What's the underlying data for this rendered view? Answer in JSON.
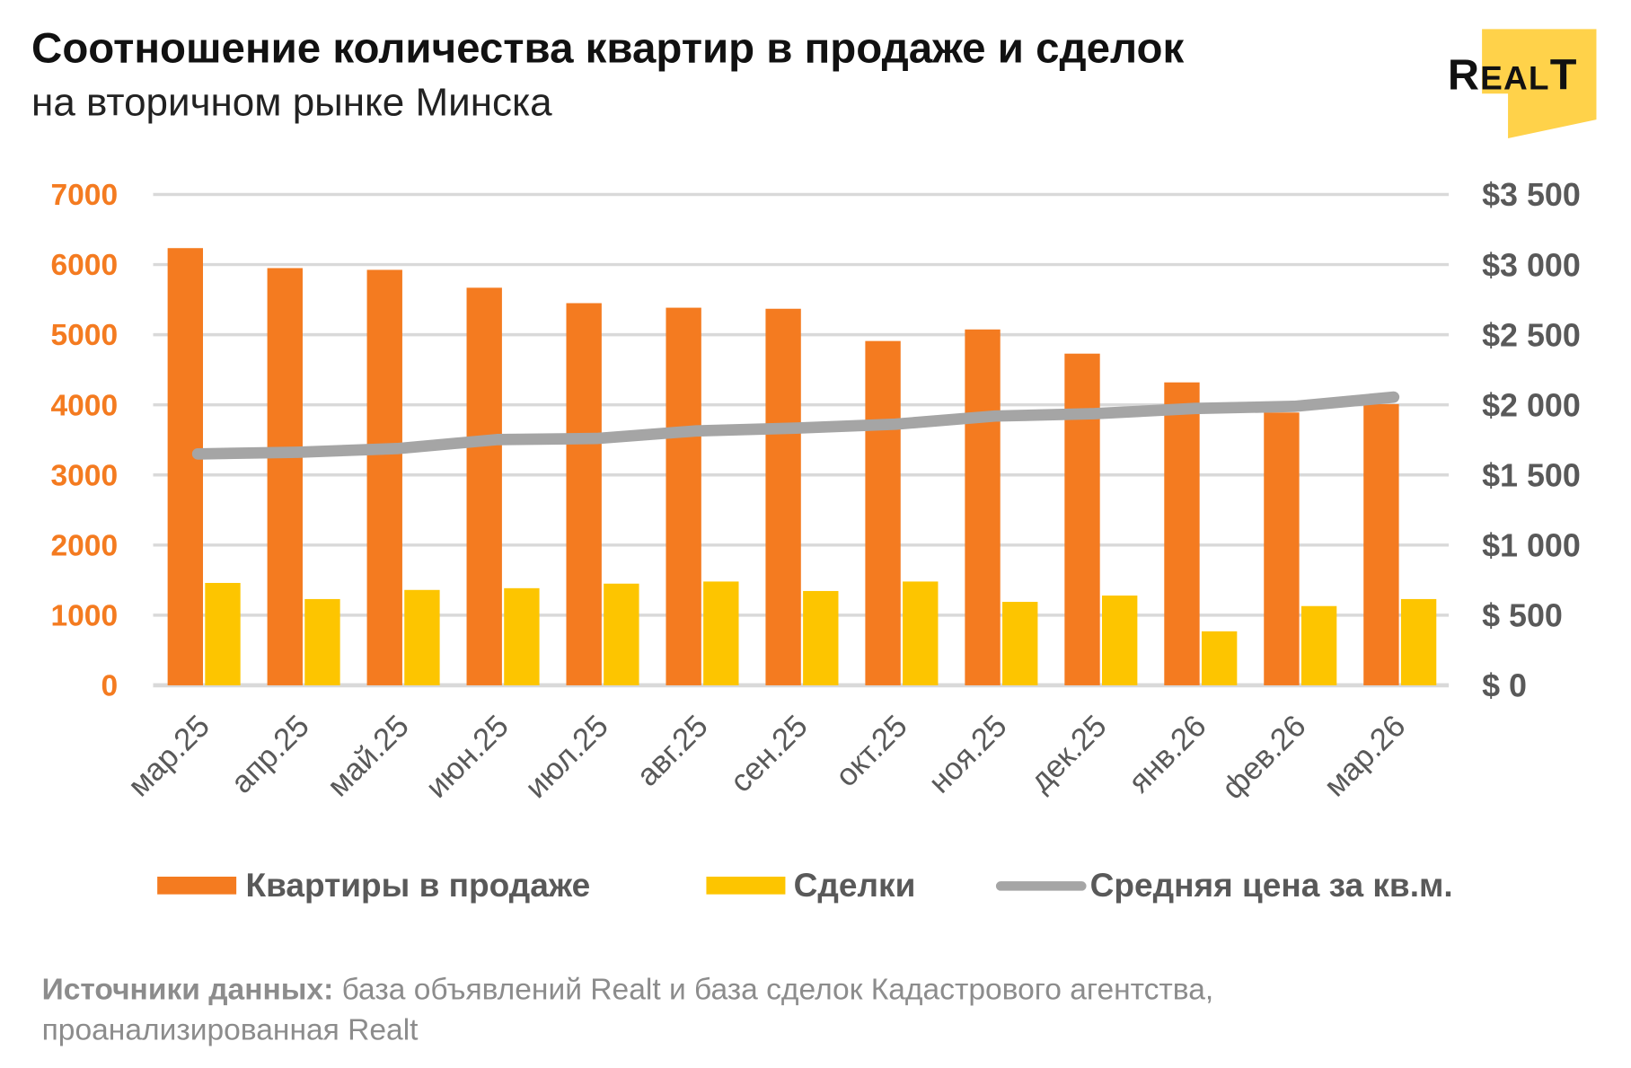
{
  "title": "Соотношение количества квартир в продаже и сделок",
  "subtitle": "на вторичном рынке Минска",
  "logo_text": "REALT",
  "source_label": "Источники данных:",
  "source_text": " база объявлений Realt и база сделок Кадастрового агентства,",
  "source_text2": "проанализированная Realt",
  "colors": {
    "listings": "#f47b20",
    "deals": "#fdc500",
    "price": "#a5a5a5",
    "logo": "#ffd24a"
  },
  "chart_data": {
    "type": "bar",
    "title": "Соотношение количества квартир в продаже и сделок",
    "categories": [
      "мар.25",
      "апр.25",
      "май.25",
      "июн.25",
      "июл.25",
      "авг.25",
      "сен.25",
      "окт.25",
      "ноя.25",
      "дек.25",
      "янв.26",
      "фев.26",
      "мар.26"
    ],
    "series": [
      {
        "name": "Квартиры в продаже",
        "type": "bar",
        "axis": "left",
        "values": [
          6235,
          5950,
          5925,
          5670,
          5450,
          5385,
          5370,
          4910,
          5075,
          4730,
          4320,
          3890,
          4010
        ]
      },
      {
        "name": "Сделки",
        "type": "bar",
        "axis": "left",
        "values": [
          1460,
          1230,
          1360,
          1385,
          1450,
          1480,
          1345,
          1480,
          1190,
          1280,
          770,
          1130,
          1230
        ]
      },
      {
        "name": "Средняя цена за кв.м.",
        "type": "line",
        "axis": "right",
        "values": [
          1650,
          1662,
          1688,
          1752,
          1760,
          1814,
          1834,
          1862,
          1920,
          1937,
          1974,
          1989,
          2055
        ]
      }
    ],
    "left_ylim": [
      0,
      7000
    ],
    "left_ticks": [
      "0",
      "1000",
      "2000",
      "3000",
      "4000",
      "5000",
      "6000",
      "7000"
    ],
    "right_ylim": [
      0,
      3500
    ],
    "right_ticks": [
      "$ 0",
      "$ 500",
      "$1 000",
      "$1 500",
      "$2 000",
      "$2 500",
      "$3 000",
      "$3 500"
    ],
    "grid": true,
    "legend_position": "bottom"
  }
}
